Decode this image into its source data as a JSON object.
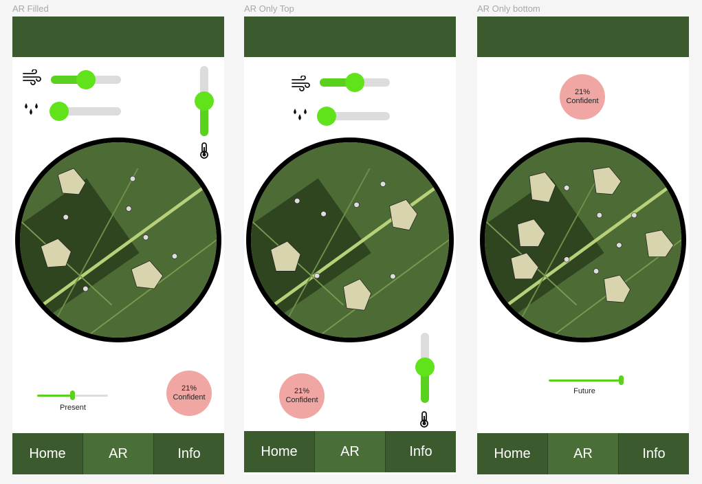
{
  "frames": [
    {
      "label": "AR Filled",
      "nav": [
        "Home",
        "AR",
        "Info"
      ],
      "active_tab": "AR",
      "wind_slider_value": 0.5,
      "humidity_slider_value": 0.1,
      "temperature_slider_value": 0.55,
      "confidence": {
        "percent": "21%",
        "text": "Confident"
      },
      "time_slider": {
        "label": "Present",
        "value": 0.5
      }
    },
    {
      "label": "AR Only Top",
      "nav": [
        "Home",
        "AR",
        "Info"
      ],
      "active_tab": "AR",
      "wind_slider_value": 0.5,
      "humidity_slider_value": 0.1,
      "temperature_slider_value": 0.55,
      "confidence": {
        "percent": "21%",
        "text": "Confident"
      }
    },
    {
      "label": "AR Only bottom",
      "nav": [
        "Home",
        "AR",
        "Info"
      ],
      "active_tab": "AR",
      "confidence": {
        "percent": "21%",
        "text": "Confident"
      },
      "time_slider": {
        "label": "Future",
        "value": 1.0
      }
    }
  ],
  "colors": {
    "header": "#3b5a2e",
    "nav_active": "#4a6e38",
    "slider_accent": "#5bd11f",
    "badge": "#f0a7a3"
  },
  "icons": [
    "wind-icon",
    "water-drops-icon",
    "thermometer-icon"
  ]
}
